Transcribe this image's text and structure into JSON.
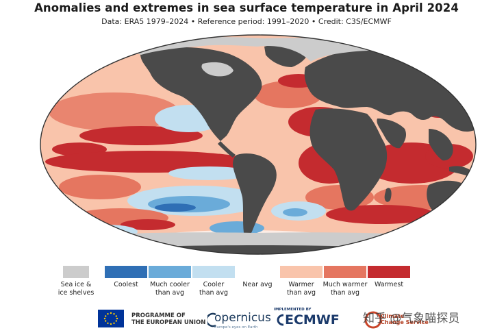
{
  "title": "Anomalies and extremes in sea surface temperature in April 2024",
  "subtitle": "Data: ERA5 1979–2024 • Reference period: 1991–2020 • Credit: C3S/ECMWF",
  "colors": {
    "land": "#4a4a4a",
    "sea_ice": "#cccccc",
    "coolest": "#2f6fb5",
    "much_cooler": "#6aabd9",
    "cooler": "#c2dff0",
    "near_avg": "#ffffff",
    "warmer": "#f9c4ab",
    "much_warmer": "#e57660",
    "warmest": "#c42b2f"
  },
  "legend": [
    {
      "key": "sea_ice",
      "label": "Sea ice &\nice shelves"
    },
    {
      "key": "coolest",
      "label": "Coolest"
    },
    {
      "key": "much_cooler",
      "label": "Much cooler\nthan avg"
    },
    {
      "key": "cooler",
      "label": "Cooler\nthan avg"
    },
    {
      "key": "near_avg",
      "label": "Near avg"
    },
    {
      "key": "warmer",
      "label": "Warmer\nthan avg"
    },
    {
      "key": "much_warmer",
      "label": "Much warmer\nthan avg"
    },
    {
      "key": "warmest",
      "label": "Warmest"
    }
  ],
  "logos": {
    "eu_text_line1": "PROGRAMME OF",
    "eu_text_line2": "THE EUROPEAN UNION",
    "copernicus_word": "opernicus",
    "copernicus_tagline": "Europe's eyes on Earth",
    "ecmwf_implemented": "IMPLEMENTED BY",
    "ecmwf_word": "ECMWF",
    "c3s_line1": "Climate",
    "c3s_line2": "Change Service"
  },
  "watermark": "知乎 @气象喵探员"
}
